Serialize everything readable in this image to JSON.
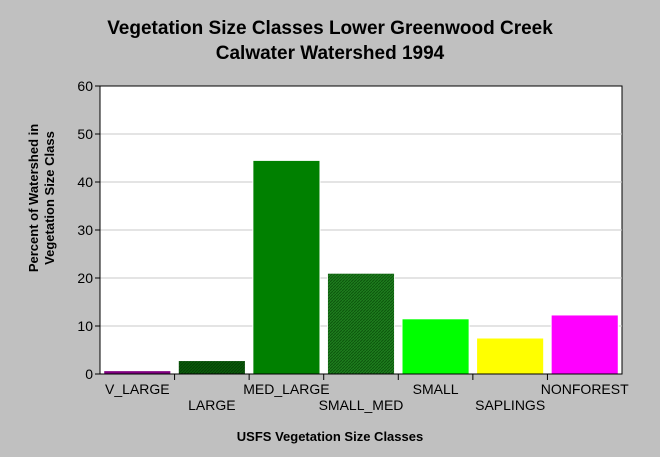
{
  "chart_data": {
    "type": "bar",
    "title": "Vegetation Size Classes Lower Greenwood Creek",
    "subtitle": "Calwater Watershed 1994",
    "xlabel": "USFS Vegetation Size Classes",
    "ylabel_lines": [
      "Percent of Watershed in",
      "Vegetation Size Class"
    ],
    "ylim": [
      0,
      60
    ],
    "yticks": [
      0,
      10,
      20,
      30,
      40,
      50,
      60
    ],
    "grid": true,
    "categories": [
      "V_LARGE",
      "LARGE",
      "MED_LARGE",
      "SMALL_MED",
      "SMALL",
      "SAPLINGS",
      "NONFOREST"
    ],
    "values": [
      0.7,
      2.8,
      44.5,
      21.0,
      11.5,
      7.5,
      12.3
    ],
    "colors": [
      "#800080",
      "#0a5a0a",
      "#008000",
      "#1e7d1e",
      "#00ff00",
      "#ffff00",
      "#ff00ff"
    ],
    "hatched": [
      false,
      true,
      false,
      true,
      false,
      false,
      false
    ]
  }
}
